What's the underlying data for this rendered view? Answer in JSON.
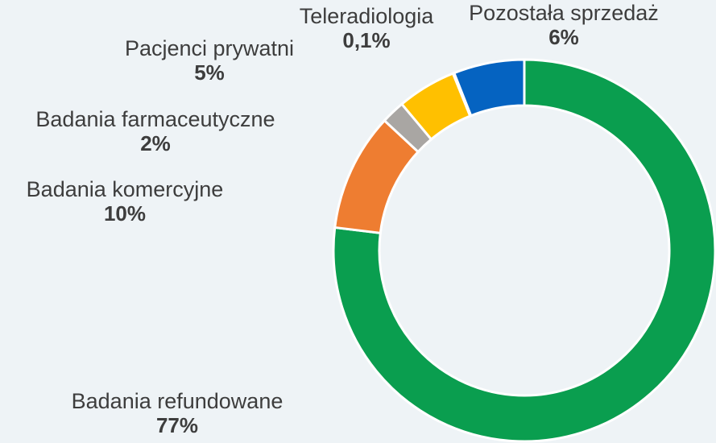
{
  "chart_data": {
    "type": "donut",
    "categories": [
      "Badania refundowane",
      "Badania komercyjne",
      "Badania farmaceutyczne",
      "Pacjenci prywatni",
      "Teleradiologia",
      "Pozostała sprzedaż"
    ],
    "values": [
      77,
      10,
      2,
      5,
      0.1,
      6
    ],
    "value_labels": [
      "77%",
      "10%",
      "2%",
      "5%",
      "0,1%",
      "6%"
    ],
    "colors": [
      "#0a9e4f",
      "#ee7d31",
      "#a9a6a3",
      "#ffc000",
      "#7fbfe0",
      "#0563c1"
    ]
  }
}
